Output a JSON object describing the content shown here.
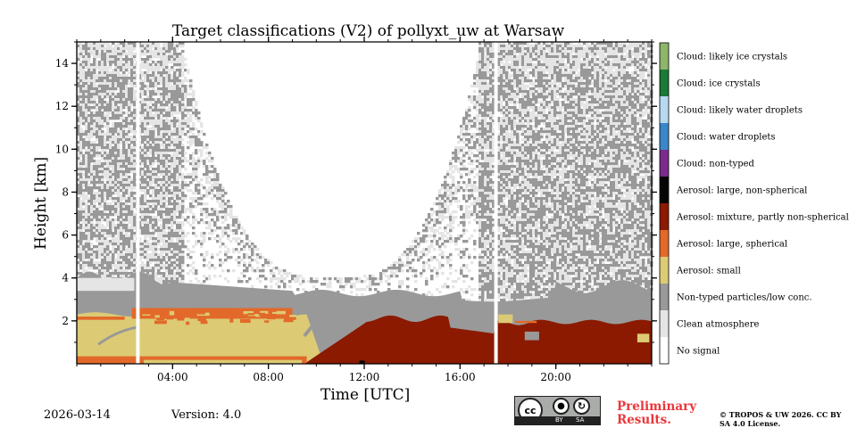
{
  "footer": {
    "date": "2026-03-14",
    "version": "Version: 4.0",
    "preliminary": "Preliminary Results.",
    "copyright": "© TROPOS & UW 2026. CC BY SA 4.0 License.",
    "license_badge": {
      "cc": "cc",
      "by": "BY",
      "sa": "SA"
    }
  },
  "chart_data": {
    "type": "heatmap",
    "title": "Target classifications (V2) of pollyxt_uw at Warsaw",
    "xlabel": "Time [UTC]",
    "ylabel": "Height [km]",
    "xlim": [
      0,
      24
    ],
    "ylim": [
      0,
      15
    ],
    "xticks": [
      {
        "value": 4,
        "label": "04:00"
      },
      {
        "value": 8,
        "label": "08:00"
      },
      {
        "value": 12,
        "label": "12:00"
      },
      {
        "value": 16,
        "label": "16:00"
      },
      {
        "value": 20,
        "label": "20:00"
      }
    ],
    "yticks": [
      {
        "value": 2,
        "label": "2"
      },
      {
        "value": 4,
        "label": "4"
      },
      {
        "value": 6,
        "label": "6"
      },
      {
        "value": 8,
        "label": "8"
      },
      {
        "value": 10,
        "label": "10"
      },
      {
        "value": 12,
        "label": "12"
      },
      {
        "value": 14,
        "label": "14"
      }
    ],
    "classes": [
      {
        "label": "Cloud: likely ice crystals",
        "color": "#8db56b"
      },
      {
        "label": "Cloud: ice crystals",
        "color": "#1a7a38"
      },
      {
        "label": "Cloud: likely water droplets",
        "color": "#b7d9f0"
      },
      {
        "label": "Cloud: water droplets",
        "color": "#3a86c8"
      },
      {
        "label": "Cloud: non-typed",
        "color": "#7b2c8a"
      },
      {
        "label": "Aerosol: large, non-spherical",
        "color": "#050505"
      },
      {
        "label": "Aerosol: mixture, partly non-spherical",
        "color": "#8b1a00"
      },
      {
        "label": "Aerosol: large, spherical",
        "color": "#e2692a"
      },
      {
        "label": "Aerosol: small",
        "color": "#dccb74"
      },
      {
        "label": "Non-typed particles/low conc.",
        "color": "#999999"
      },
      {
        "label": "Clean atmosphere",
        "color": "#e5e5e5"
      },
      {
        "label": "No signal",
        "color": "#ffffff"
      }
    ],
    "regions": {
      "data_gaps_utc": [
        2.55,
        17.5
      ],
      "aerosol_small_top_km": 2.3,
      "aerosol_large_spherical_band_km": [
        2.1,
        2.6
      ],
      "mixture_layer_span_utc": [
        9.5,
        24
      ],
      "mixture_layer_top_km": 2.3,
      "nontyped_boundary_top_km": 3.4,
      "clear_gap_utc": [
        4.5,
        16.8
      ]
    }
  }
}
